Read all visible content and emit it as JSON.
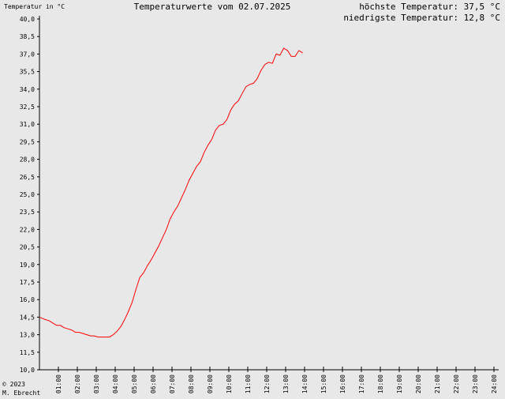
{
  "header": {
    "unit_label": "Temperatur in °C",
    "title": "Temperaturwerte vom 02.07.2025",
    "max_label": "höchste Temperatur: 37,5 °C",
    "min_label": "niedrigste Temperatur: 12,8 °C"
  },
  "footer": {
    "copyright": "© 2023",
    "author": "M. Ebrecht"
  },
  "colors": {
    "line": "#ff0000",
    "background": "#e8e8e8",
    "axis": "#000000"
  },
  "chart_data": {
    "type": "line",
    "title": "Temperaturwerte vom 02.07.2025",
    "ylabel": "Temperatur in °C",
    "xlabel": "",
    "ylim": [
      10.0,
      40.0
    ],
    "xlim": [
      0,
      24
    ],
    "grid": false,
    "y_ticks": [
      "10,0",
      "11,5",
      "13,0",
      "14,5",
      "16,0",
      "17,5",
      "19,0",
      "20,5",
      "22,0",
      "23,5",
      "25,0",
      "26,5",
      "28,0",
      "29,5",
      "31,0",
      "32,5",
      "34,0",
      "35,5",
      "37,0",
      "38,5",
      "40,0"
    ],
    "x_ticks": [
      "01:00",
      "02:00",
      "03:00",
      "04:00",
      "05:00",
      "06:00",
      "07:00",
      "08:00",
      "09:00",
      "10:00",
      "11:00",
      "12:00",
      "13:00",
      "14:00",
      "15:00",
      "16:00",
      "17:00",
      "18:00",
      "19:00",
      "20:00",
      "21:00",
      "22:00",
      "23:00",
      "24:00"
    ],
    "series": [
      {
        "x": [
          0.0,
          0.3,
          0.5,
          0.7,
          0.9,
          1.1,
          1.3,
          1.5,
          1.7,
          1.9,
          2.1,
          2.3,
          2.5,
          2.7,
          2.9,
          3.1,
          3.3,
          3.5,
          3.7,
          3.9,
          4.1,
          4.3,
          4.5,
          4.7,
          4.9,
          5.1,
          5.3,
          5.5,
          5.7,
          5.9,
          6.1,
          6.3,
          6.5,
          6.7,
          6.9,
          7.1,
          7.3,
          7.5,
          7.7,
          7.9,
          8.1,
          8.3,
          8.5,
          8.7,
          8.9,
          9.1,
          9.3,
          9.5,
          9.7,
          9.9,
          10.1,
          10.3,
          10.5,
          10.7,
          10.9,
          11.1,
          11.3,
          11.5,
          11.7,
          11.9,
          12.1,
          12.3,
          12.5,
          12.7,
          12.9,
          13.1,
          13.3,
          13.5,
          13.7,
          13.9
        ],
        "y": [
          14.5,
          14.3,
          14.2,
          14.0,
          13.8,
          13.8,
          13.6,
          13.5,
          13.4,
          13.2,
          13.2,
          13.1,
          13.0,
          12.9,
          12.9,
          12.8,
          12.8,
          12.8,
          12.8,
          13.0,
          13.3,
          13.7,
          14.3,
          15.0,
          15.8,
          16.9,
          17.9,
          18.3,
          18.9,
          19.4,
          20.0,
          20.6,
          21.3,
          22.0,
          22.9,
          23.5,
          24.0,
          24.7,
          25.4,
          26.2,
          26.8,
          27.4,
          27.8,
          28.6,
          29.2,
          29.7,
          30.5,
          30.9,
          31.0,
          31.4,
          32.2,
          32.7,
          33.0,
          33.6,
          34.2,
          34.4,
          34.5,
          34.9,
          35.6,
          36.1,
          36.3,
          36.2,
          37.0,
          36.9,
          37.5,
          37.3,
          36.8,
          36.8,
          37.3,
          37.1
        ]
      }
    ]
  }
}
